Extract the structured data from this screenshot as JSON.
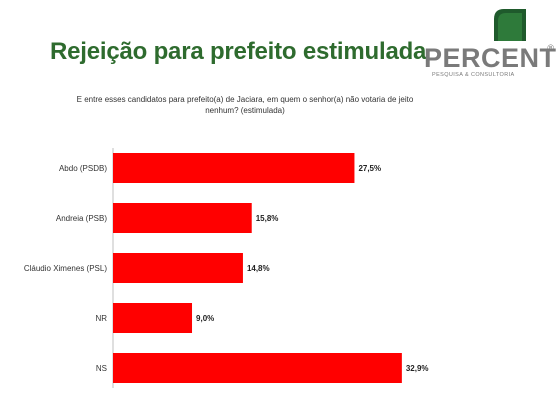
{
  "header": {
    "title": "Rejeição para prefeito estimulada",
    "logo_name": "PERCENT",
    "logo_registered": "®",
    "logo_tagline": "PESQUISA & CONSULTORIA",
    "brand_colors": {
      "green": "#2e6b2e",
      "gray": "#7a7a7a"
    }
  },
  "question": "E entre esses candidatos para prefeito(a) de Jaciara, em quem o senhor(a) não votaria de jeito nenhum? (estimulada)",
  "chart_data": {
    "type": "bar",
    "orientation": "horizontal",
    "categories": [
      "Abdo (PSDB)",
      "Andreia (PSB)",
      "Cláudio Ximenes (PSL)",
      "NR",
      "NS"
    ],
    "values": [
      27.5,
      15.8,
      14.8,
      9.0,
      32.9
    ],
    "value_labels": [
      "27,5%",
      "15,8%",
      "14,8%",
      "9,0%",
      "32,9%"
    ],
    "unit": "%",
    "bar_color": "#ff0000",
    "grid": false,
    "legend": "none"
  }
}
